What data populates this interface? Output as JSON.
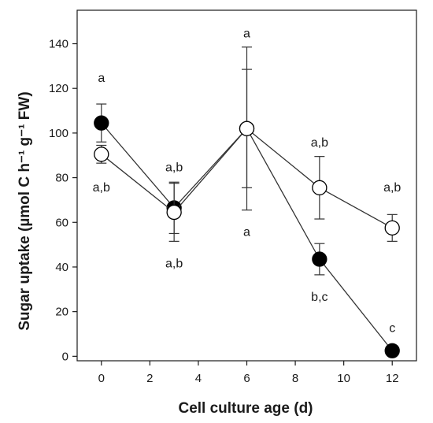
{
  "chart_data": {
    "type": "scatter",
    "xlabel": "Cell culture age (d)",
    "ylabel": "Sugar uptake (µmol C h⁻¹ g⁻¹ FW)",
    "xlim": [
      -1,
      13
    ],
    "ylim": [
      -2,
      155
    ],
    "xticks": [
      0,
      2,
      4,
      6,
      8,
      10,
      12
    ],
    "yticks": [
      0,
      20,
      40,
      60,
      80,
      100,
      120,
      140
    ],
    "grid": false,
    "legend": "none",
    "series": [
      {
        "marker": "filled-circle",
        "color": "#000000",
        "x": [
          0,
          3,
          6,
          9,
          12
        ],
        "y": [
          104.5,
          66.5,
          102,
          43.5,
          2.5
        ],
        "err": [
          8.5,
          11.5,
          26.5,
          7,
          0
        ]
      },
      {
        "marker": "open-circle",
        "color": "#000000",
        "x": [
          0,
          3,
          6,
          9,
          12
        ],
        "y": [
          90.5,
          64.5,
          102,
          75.5,
          57.5
        ],
        "err": [
          4,
          13,
          36.5,
          14,
          6
        ]
      }
    ],
    "annotations": [
      {
        "text": "a",
        "x": 0,
        "y": 125
      },
      {
        "text": "a,b",
        "x": 0,
        "y": 76
      },
      {
        "text": "a,b",
        "x": 3,
        "y": 85
      },
      {
        "text": "a,b",
        "x": 3,
        "y": 42
      },
      {
        "text": "a",
        "x": 6,
        "y": 145
      },
      {
        "text": "a",
        "x": 6,
        "y": 56
      },
      {
        "text": "a,b",
        "x": 9,
        "y": 96
      },
      {
        "text": "b,c",
        "x": 9,
        "y": 27
      },
      {
        "text": "a,b",
        "x": 12,
        "y": 76
      },
      {
        "text": "c",
        "x": 12,
        "y": 13
      }
    ]
  }
}
